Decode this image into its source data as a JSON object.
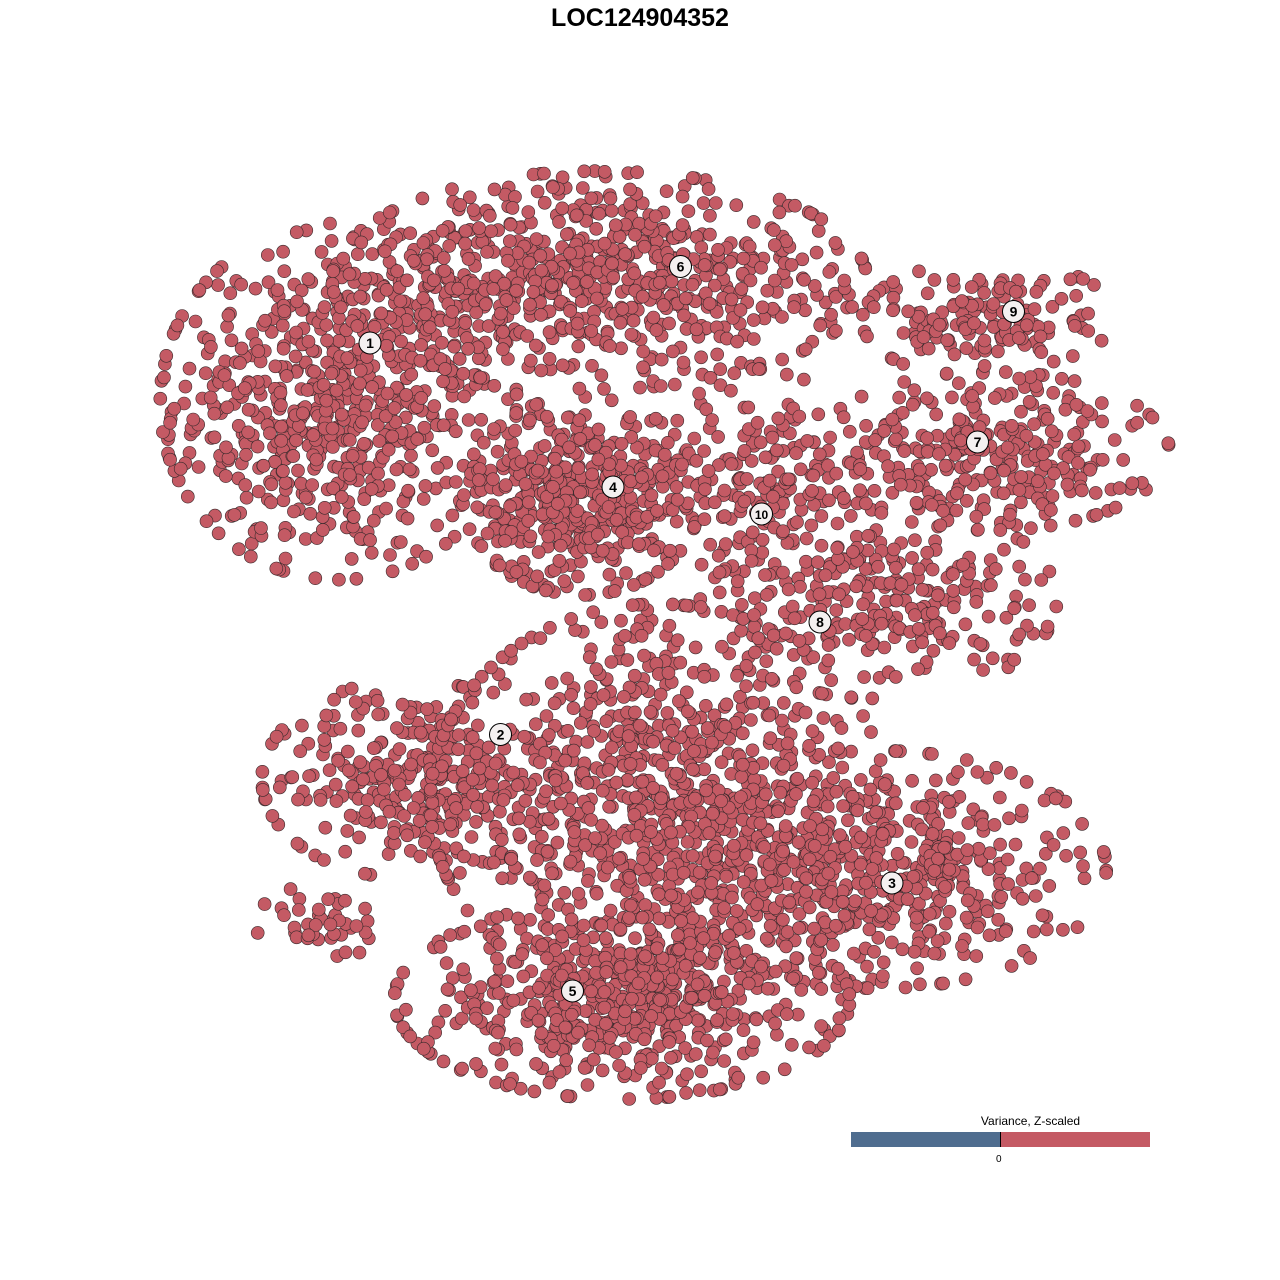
{
  "chart_data": {
    "type": "scatter",
    "title": "LOC124904352",
    "xlabel": "",
    "ylabel": "",
    "grid": false,
    "axes_visible": false,
    "point_color": "#c45a64",
    "point_stroke": "#3a2a2c",
    "clusters": [
      {
        "label": "1",
        "label_pos": [
          -6.0,
          6.6
        ],
        "blobs": [
          {
            "center": [
              -6.7,
              5.3
            ],
            "sd": [
              1.8,
              1.8
            ],
            "n": 700
          }
        ]
      },
      {
        "label": "2",
        "label_pos": [
          -3.1,
          -2.1
        ],
        "blobs": [
          {
            "center": [
              -5.1,
              -3.1
            ],
            "sd": [
              1.5,
              1.0
            ],
            "n": 300
          },
          {
            "center": [
              -7.0,
              -6.3
            ],
            "sd": [
              0.7,
              0.4
            ],
            "n": 40
          }
        ]
      },
      {
        "label": "3",
        "label_pos": [
          5.6,
          -5.4
        ],
        "blobs": [
          {
            "center": [
              5.3,
              -5.1
            ],
            "sd": [
              2.3,
              1.2
            ],
            "n": 550
          }
        ]
      },
      {
        "label": "4",
        "label_pos": [
          -0.6,
          3.4
        ],
        "blobs": [
          {
            "center": [
              -1.3,
              3.2
            ],
            "sd": [
              1.2,
              1.0
            ],
            "n": 450
          }
        ]
      },
      {
        "label": "5",
        "label_pos": [
          -1.5,
          -7.8
        ],
        "blobs": [
          {
            "center": [
              -0.4,
              -8.0
            ],
            "sd": [
              2.3,
              1.0
            ],
            "n": 600
          },
          {
            "center": [
              0.4,
              -3.6
            ],
            "sd": [
              2.3,
              2.0
            ],
            "n": 900
          }
        ]
      },
      {
        "label": "6",
        "label_pos": [
          0.9,
          8.3
        ],
        "blobs": [
          {
            "center": [
              -0.9,
              8.0
            ],
            "sd": [
              2.7,
              1.1
            ],
            "n": 700
          }
        ]
      },
      {
        "label": "7",
        "label_pos": [
          7.5,
          4.4
        ],
        "blobs": [
          {
            "center": [
              7.8,
              4.2
            ],
            "sd": [
              1.8,
              0.8
            ],
            "n": 300
          }
        ]
      },
      {
        "label": "8",
        "label_pos": [
          4.0,
          0.4
        ],
        "blobs": [
          {
            "center": [
              5.3,
              0.9
            ],
            "sd": [
              1.8,
              1.0
            ],
            "n": 280
          }
        ]
      },
      {
        "label": "9",
        "label_pos": [
          8.3,
          7.3
        ],
        "blobs": [
          {
            "center": [
              7.8,
              7.1
            ],
            "sd": [
              1.3,
              0.6
            ],
            "n": 160
          }
        ]
      },
      {
        "label": "10",
        "label_pos": [
          2.7,
          2.8
        ],
        "blobs": [
          {
            "center": [
              2.7,
              3.6
            ],
            "sd": [
              1.0,
              1.1
            ],
            "n": 170
          }
        ]
      }
    ],
    "legend": {
      "title": "Variance, Z-scaled",
      "tick_label": "0",
      "low_color": "#4f6d8f",
      "high_color": "#c45a64",
      "placement": "bottom-right"
    }
  }
}
